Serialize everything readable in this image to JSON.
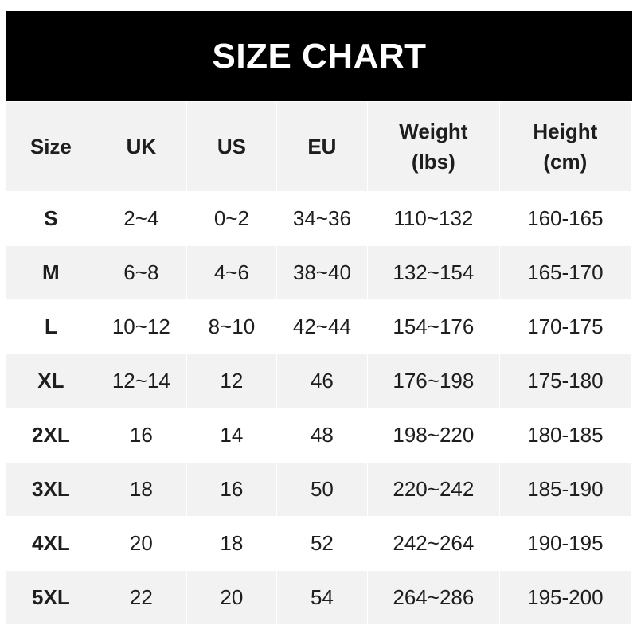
{
  "title": "SIZE CHART",
  "headers": [
    "Size",
    "UK",
    "US",
    "EU",
    "Weight\n(lbs)",
    "Height\n(cm)"
  ],
  "rows": [
    [
      "S",
      "2~4",
      "0~2",
      "34~36",
      "110~132",
      "160-165"
    ],
    [
      "M",
      "6~8",
      "4~6",
      "38~40",
      "132~154",
      "165-170"
    ],
    [
      "L",
      "10~12",
      "8~10",
      "42~44",
      "154~176",
      "170-175"
    ],
    [
      "XL",
      "12~14",
      "12",
      "46",
      "176~198",
      "175-180"
    ],
    [
      "2XL",
      "16",
      "14",
      "48",
      "198~220",
      "180-185"
    ],
    [
      "3XL",
      "18",
      "16",
      "50",
      "220~242",
      "185-190"
    ],
    [
      "4XL",
      "20",
      "18",
      "52",
      "242~264",
      "190-195"
    ],
    [
      "5XL",
      "22",
      "20",
      "54",
      "264~286",
      "195-200"
    ]
  ],
  "colors": {
    "header_bg": "#000000",
    "stripe": "#f2f2f2",
    "text": "#1e1e1e"
  }
}
